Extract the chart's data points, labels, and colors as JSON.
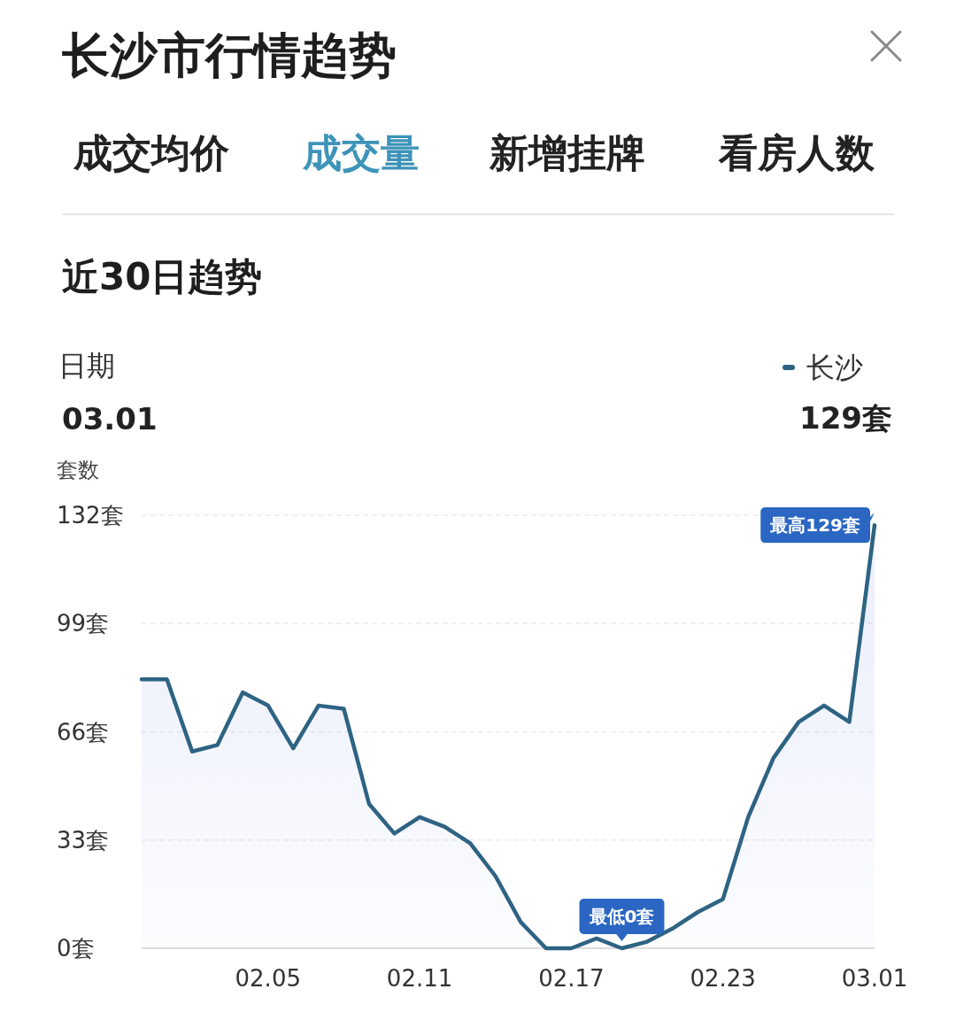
{
  "chart_data": {
    "type": "area",
    "title": "长沙市行情趋势",
    "subtitle": "近30日趋势",
    "ylabel": "套数",
    "annotations": [
      "成交均价",
      "成交量",
      "新增挂牌",
      "看房人数",
      "日期",
      "03.01",
      "129套",
      {
        "text": "最高129套",
        "x": "--03-01",
        "y": 129
      },
      {
        "text": "最低0套",
        "x": "--02-19",
        "y": 0
      }
    ],
    "x": [
      "--01-31",
      "--02-01",
      "--02-02",
      "--02-03",
      "--02-04",
      "--02-05",
      "--02-06",
      "--02-07",
      "--02-08",
      "--02-09",
      "--02-10",
      "--02-11",
      "--02-12",
      "--02-13",
      "--02-14",
      "--02-15",
      "--02-16",
      "--02-17",
      "--02-18",
      "--02-19",
      "--02-20",
      "--02-21",
      "--02-22",
      "--02-23",
      "--02-24",
      "--02-25",
      "--02-26",
      "--02-27",
      "--02-28",
      "--03-01"
    ],
    "series": [
      {
        "name": "长沙",
        "color": "#2e6383",
        "values": [
          82,
          82,
          60,
          62,
          78,
          74,
          61,
          74,
          73,
          44,
          35,
          40,
          37,
          32,
          22,
          8,
          0,
          0,
          3,
          0,
          2,
          6,
          11,
          15,
          40,
          58,
          69,
          74,
          69,
          129
        ]
      }
    ],
    "xlim": [
      "--01-31",
      "--03-01"
    ],
    "xticks": [
      {
        "value": "--02-05",
        "label": "02.05"
      },
      {
        "value": "--02-11",
        "label": "02.11"
      },
      {
        "value": "--02-17",
        "label": "02.17"
      },
      {
        "value": "--02-23",
        "label": "02.23"
      },
      {
        "value": "--03-01",
        "label": "03.01"
      }
    ],
    "ylim": [
      0,
      132
    ],
    "yticks": [
      {
        "value": 0,
        "label": "0套"
      },
      {
        "value": 33,
        "label": "33套"
      },
      {
        "value": 66,
        "label": "66套"
      },
      {
        "value": 99,
        "label": "99套"
      },
      {
        "value": 132,
        "label": "132套"
      }
    ],
    "grid": "y",
    "legend": "top right"
  }
}
